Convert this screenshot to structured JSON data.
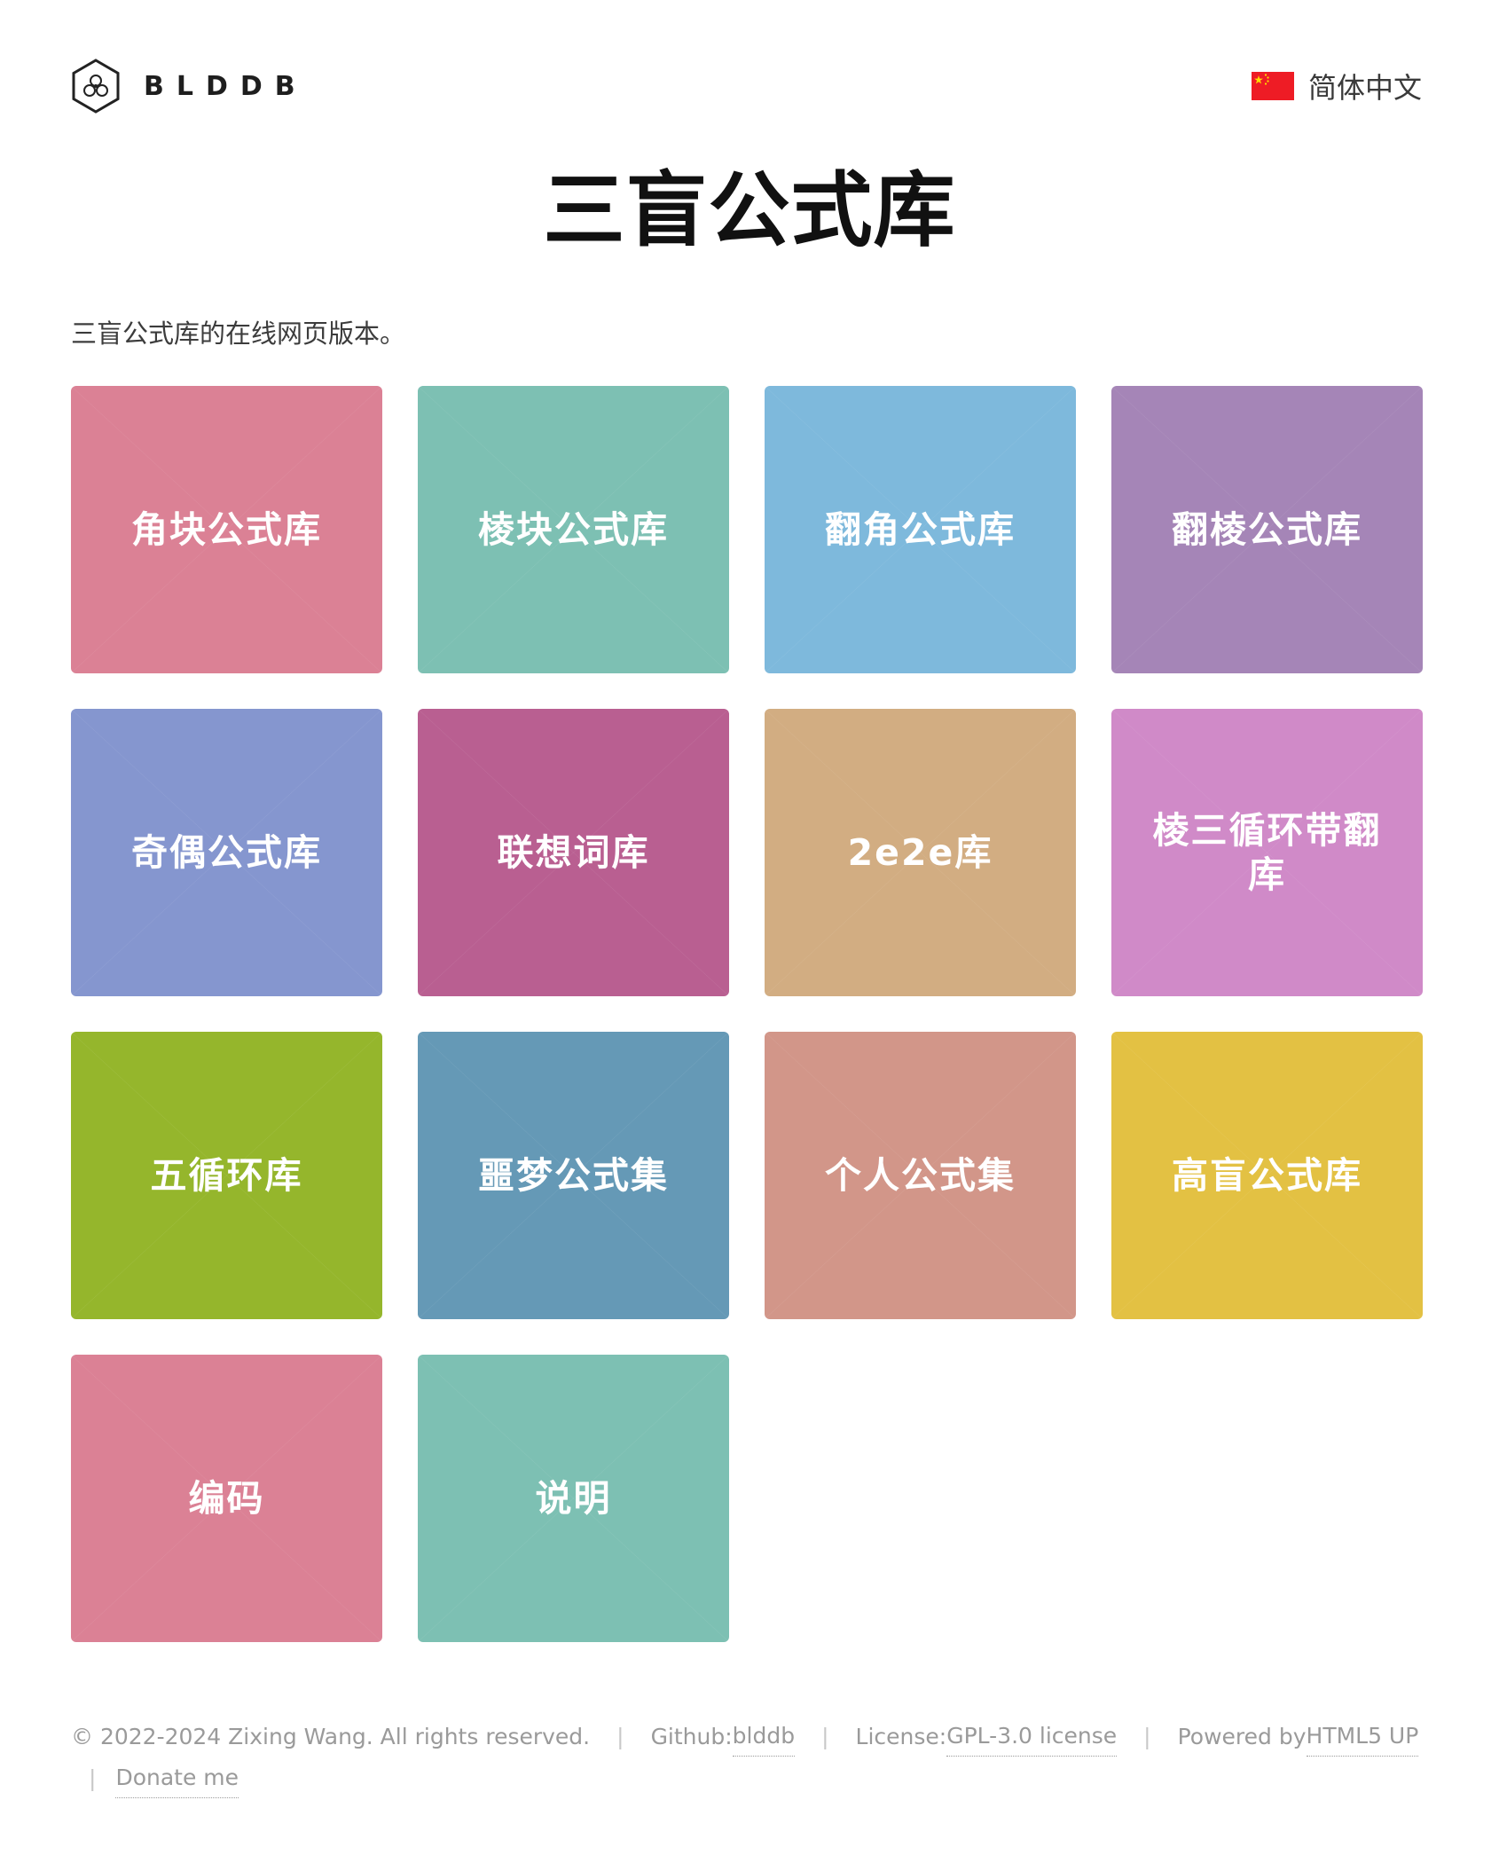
{
  "header": {
    "logo_text": "BLDDB",
    "language": "简体中文",
    "flag_icon": "china-flag-icon"
  },
  "title": "三盲公式库",
  "subtitle": "三盲公式库的在线网页版本。",
  "tiles": [
    {
      "label": "角块公式库",
      "color": "#db8195"
    },
    {
      "label": "棱块公式库",
      "color": "#7dc0b3"
    },
    {
      "label": "翻角公式库",
      "color": "#7eb9dc"
    },
    {
      "label": "翻棱公式库",
      "color": "#a585b7"
    },
    {
      "label": "奇偶公式库",
      "color": "#8596cf"
    },
    {
      "label": "联想词库",
      "color": "#b95f91"
    },
    {
      "label": "2e2e库",
      "color": "#d2ad82"
    },
    {
      "label": "棱三循环带翻库",
      "color": "#d08ac8"
    },
    {
      "label": "五循环库",
      "color": "#95b62c"
    },
    {
      "label": "噩梦公式集",
      "color": "#6599b6"
    },
    {
      "label": "个人公式集",
      "color": "#d29689"
    },
    {
      "label": "高盲公式库",
      "color": "#e3c143"
    },
    {
      "label": "编码",
      "color": "#db8195"
    },
    {
      "label": "说明",
      "color": "#7dc0b3"
    }
  ],
  "footer": {
    "copyright": "© 2022-2024 Zixing Wang. All rights reserved.",
    "github_prefix": "Github: ",
    "github_link": "blddb",
    "license_prefix": "License: ",
    "license_link": "GPL-3.0 license",
    "powered_prefix": "Powered by ",
    "powered_link": "HTML5 UP",
    "separator": "|",
    "donate": "Donate me"
  }
}
